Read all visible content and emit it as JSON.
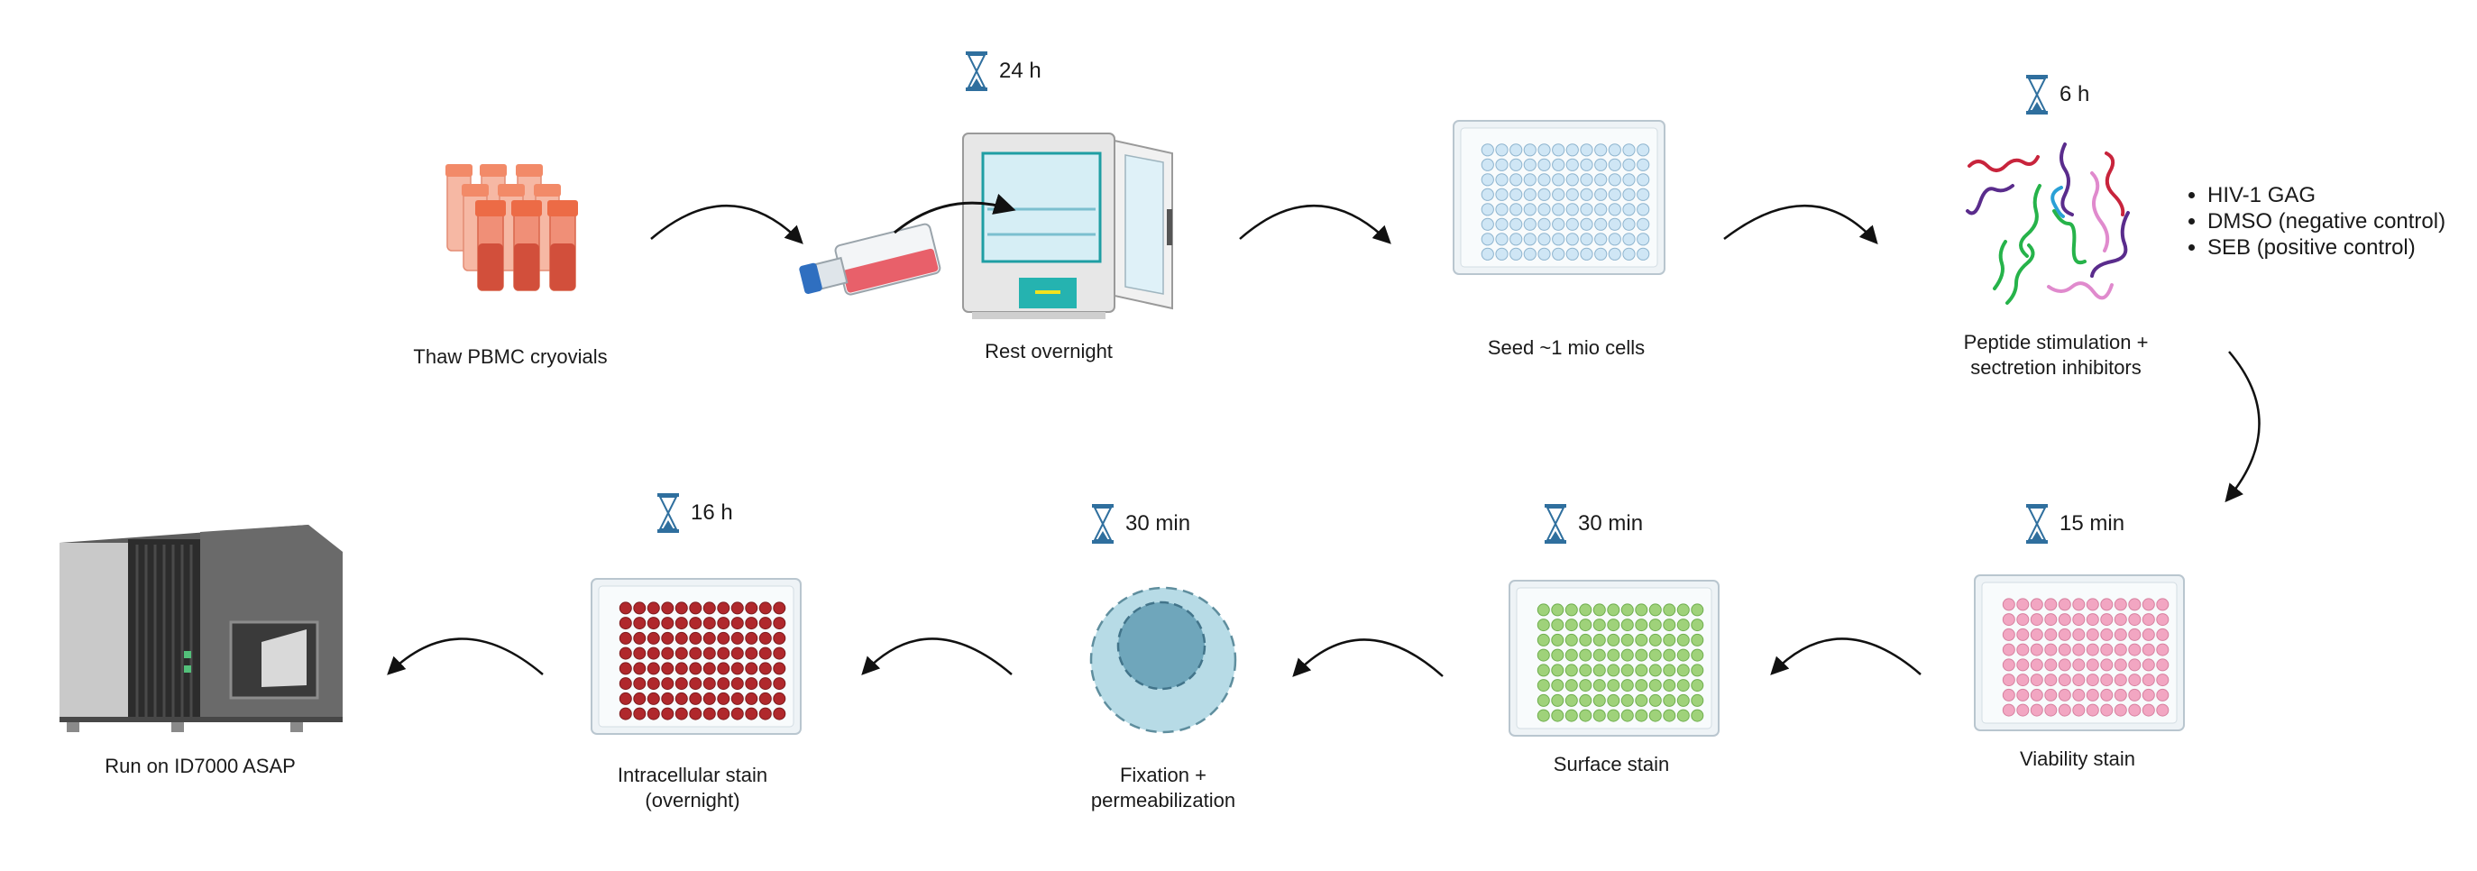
{
  "steps": [
    {
      "label_lines": [
        "Thaw PBMC cryovials"
      ]
    },
    {
      "label_lines": [
        "Rest overnight"
      ],
      "timer": "24 h"
    },
    {
      "label_lines": [
        "Seed ~1 mio cells"
      ]
    },
    {
      "label_lines": [
        "Peptide stimulation +",
        "sectretion inhibitors"
      ],
      "timer": "6 h"
    },
    {
      "label_lines": [
        "Viability stain"
      ],
      "timer": "15 min"
    },
    {
      "label_lines": [
        "Surface stain"
      ],
      "timer": "30 min"
    },
    {
      "label_lines": [
        "Fixation +",
        "permeabilization"
      ],
      "timer": "30 min"
    },
    {
      "label_lines": [
        "Intracellular stain",
        "(overnight)"
      ],
      "timer": "16 h"
    },
    {
      "label_lines": [
        "Run on ID7000 ASAP"
      ]
    }
  ],
  "stimulation_conditions": [
    "HIV-1 GAG",
    "DMSO (negative control)",
    "SEB (positive control)"
  ],
  "colors": {
    "vial": "#f08a6a",
    "flask_medium": "#e8606a",
    "incubator_panel": "#25b3b0",
    "well_empty": "#cfe6f5",
    "well_viability": "#f2a6c2",
    "well_surface": "#9fd27a",
    "well_intracellular": "#b0282c",
    "cell_outer": "#b7dbe6",
    "cell_nucleus": "#6fa6bb",
    "hourglass": "#2f6f9e"
  }
}
